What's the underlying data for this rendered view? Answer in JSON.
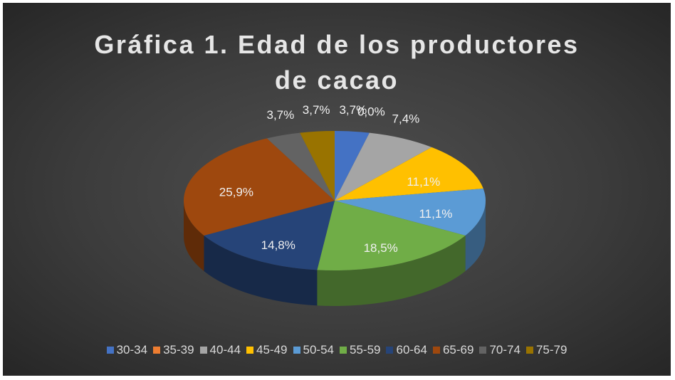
{
  "chart_data": {
    "type": "pie",
    "title": "Gráfica 1. Edad de los productores de cacao",
    "categories": [
      "30-34",
      "35-39",
      "40-44",
      "45-49",
      "50-54",
      "55-59",
      "60-64",
      "65-69",
      "70-74",
      "75-79"
    ],
    "values": [
      3.7,
      0.0,
      7.4,
      11.1,
      11.1,
      18.5,
      14.8,
      25.9,
      3.7,
      3.7
    ],
    "value_labels": [
      "3,7%",
      "0,0%",
      "7,4%",
      "11,1%",
      "11,1%",
      "18,5%",
      "14,8%",
      "25,9%",
      "3,7%",
      "3,7%"
    ],
    "colors": [
      "#4472c4",
      "#ed7d31",
      "#a5a5a5",
      "#ffc000",
      "#5b9bd5",
      "#70ad47",
      "#264478",
      "#9e480e",
      "#636363",
      "#997300"
    ],
    "legend": "bottom"
  }
}
